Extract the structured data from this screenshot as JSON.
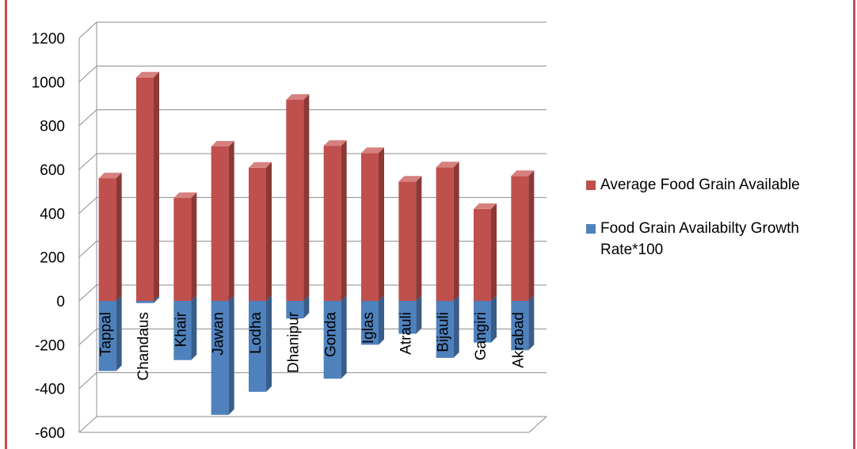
{
  "colors": {
    "series_a": "#c0504d",
    "series_a_side": "#8c3836",
    "series_a_top": "#d6817f",
    "series_b": "#4f81bd",
    "series_b_side": "#385d8a",
    "series_b_top": "#7aa3d6",
    "border": "#c0504d",
    "grid": "#8c8c8c"
  },
  "chart_data": {
    "type": "bar",
    "categories": [
      "Tappal",
      "Chandaus",
      "Khair",
      "Jawan",
      "Lodha",
      "Dhanipur",
      "Gonda",
      "Iglas",
      "Atrauli",
      "Bijauli",
      "Gangiri",
      "Akrabad"
    ],
    "series": [
      {
        "name": "Average Food Grain Available",
        "values": [
          560,
          1020,
          470,
          705,
          608,
          918,
          708,
          675,
          545,
          610,
          420,
          570
        ]
      },
      {
        "name": "Food Grain Availabilty Growth Rate*100",
        "values": [
          -320,
          -10,
          -270,
          -520,
          -415,
          -80,
          -355,
          -200,
          -150,
          -260,
          -190,
          -225
        ]
      }
    ],
    "ylim": [
      -600,
      1200
    ],
    "yticks": [
      -600,
      -400,
      -200,
      0,
      200,
      400,
      600,
      800,
      1000,
      1200
    ],
    "xlabel": "",
    "ylabel": "",
    "grid": true,
    "legend_position": "right"
  }
}
